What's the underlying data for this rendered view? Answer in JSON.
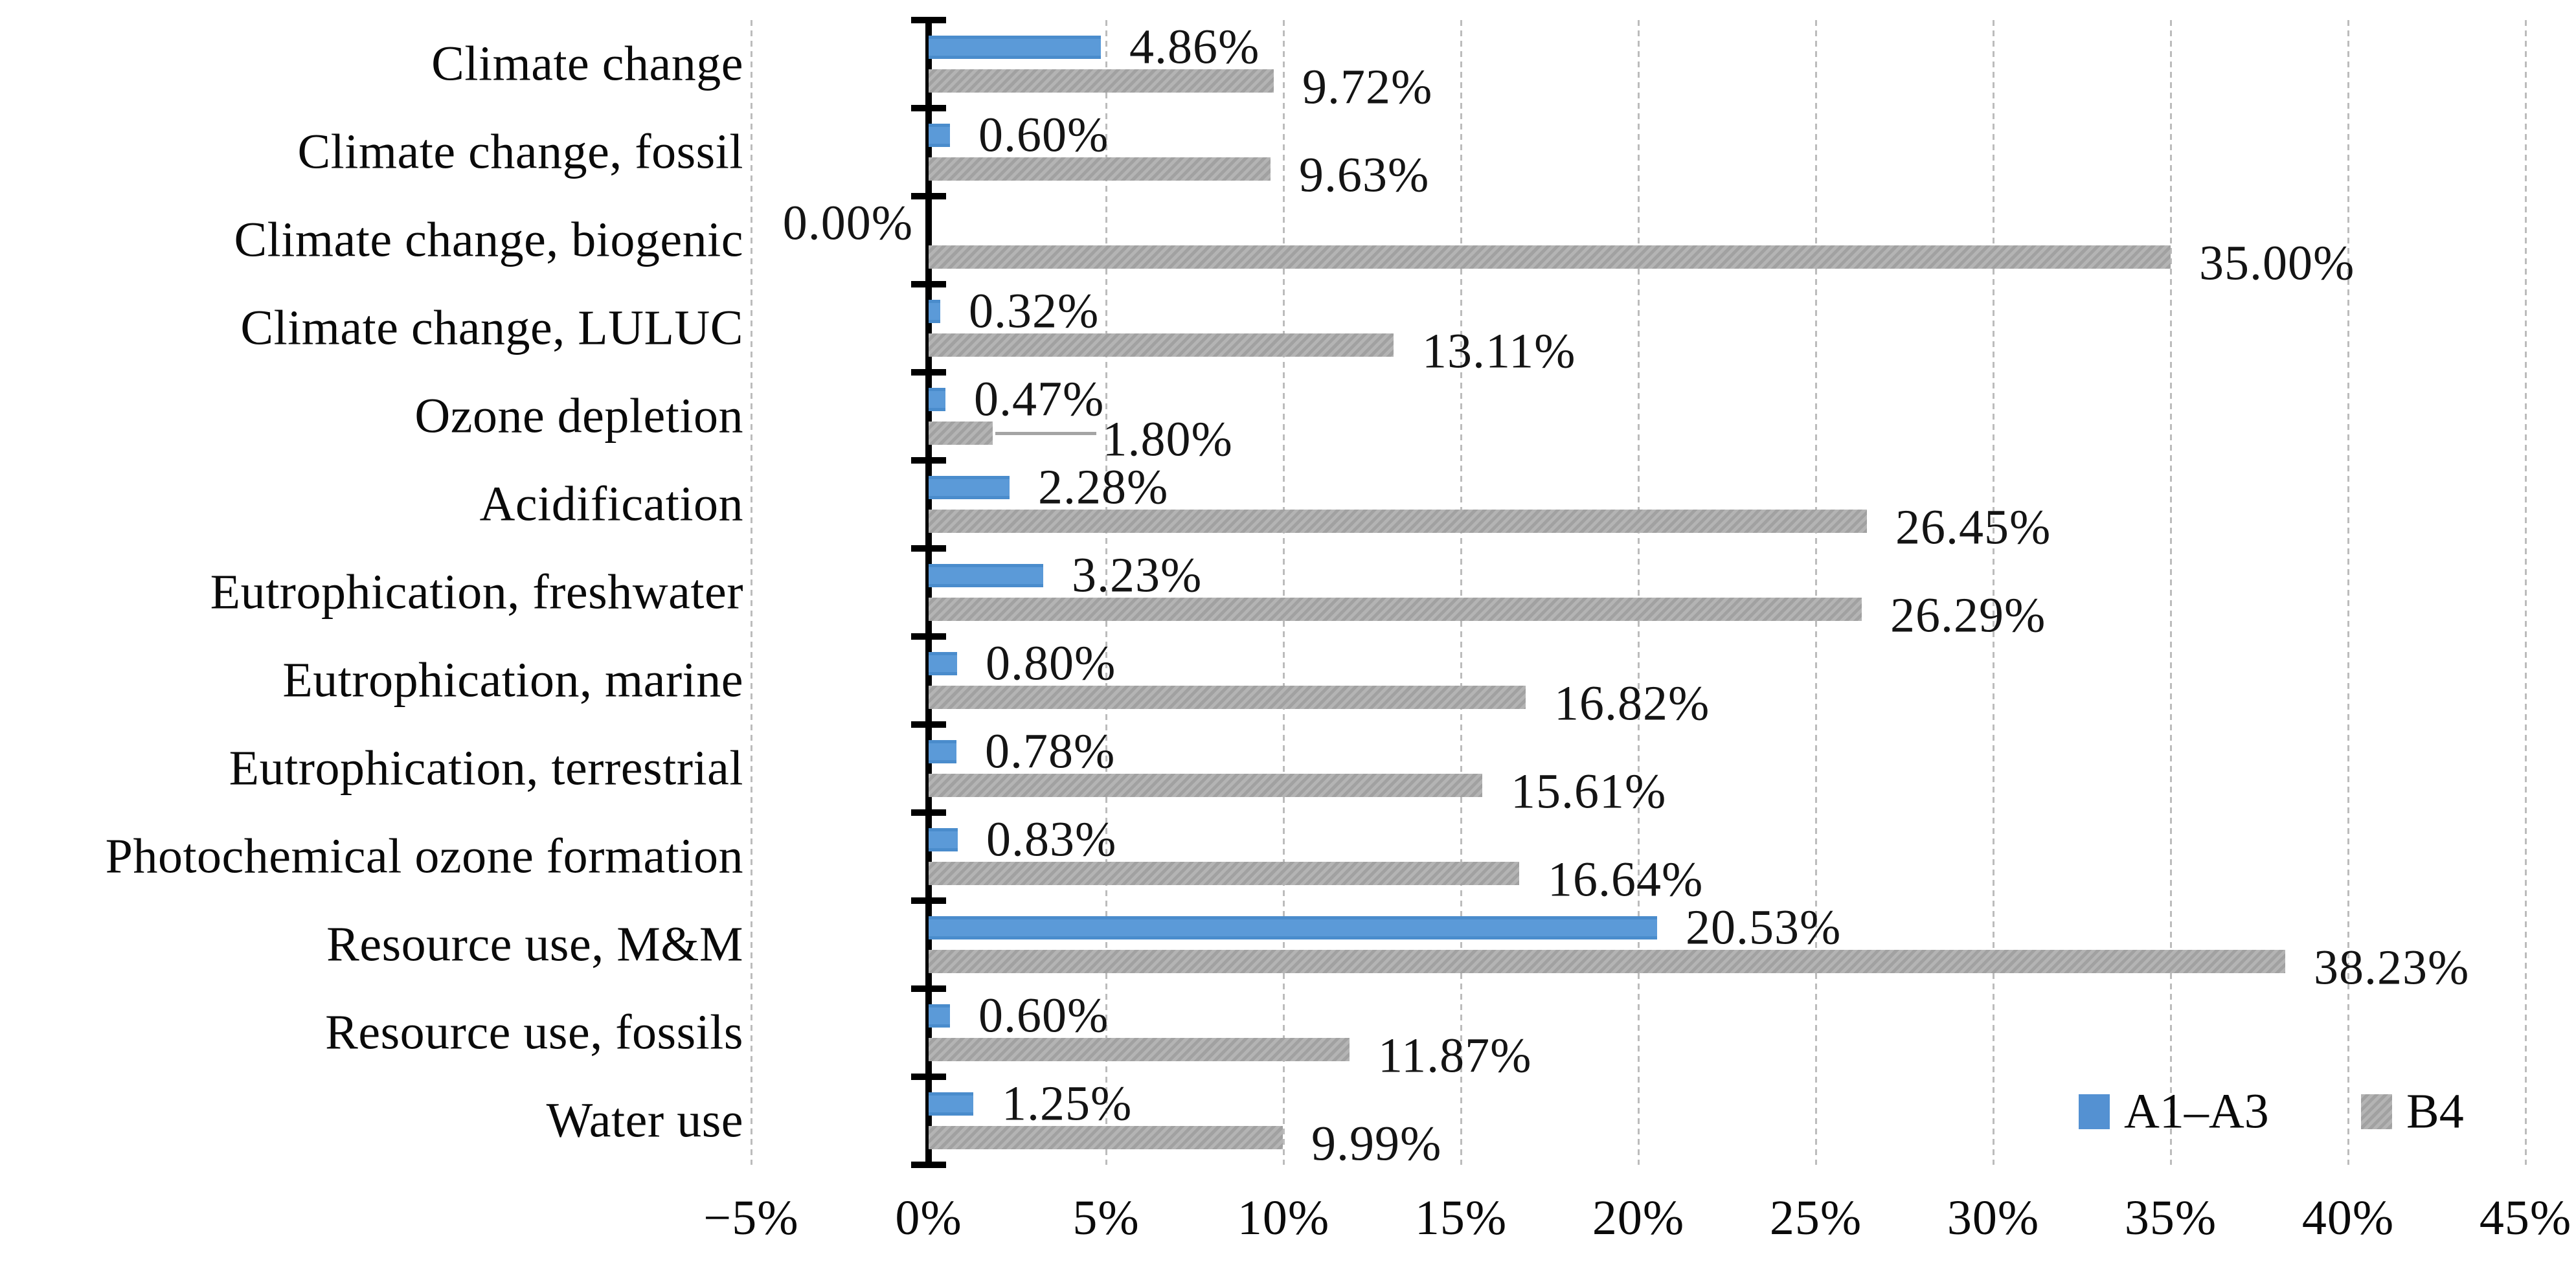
{
  "chart_data": {
    "type": "bar",
    "orientation": "horizontal",
    "title": "",
    "xlabel": "",
    "ylabel": "",
    "grid": "vertical-dashed",
    "categories": [
      "Climate change",
      "Climate change, fossil",
      "Climate change, biogenic",
      "Climate change, LULUC",
      "Ozone depletion",
      "Acidification",
      "Eutrophication, freshwater",
      "Eutrophication, marine",
      "Eutrophication, terrestrial",
      "Photochemical ozone formation",
      "Resource use, M&M",
      "Resource use, fossils",
      "Water use"
    ],
    "series": [
      {
        "name": "A1–A3",
        "color": "#5491d2",
        "values": [
          4.86,
          0.6,
          0.0,
          0.32,
          0.47,
          2.28,
          3.23,
          0.8,
          0.78,
          0.83,
          20.53,
          0.6,
          1.25
        ],
        "labels": [
          "4.86%",
          "0.60%",
          "0.00%",
          "0.32%",
          "0.47%",
          "2.28%",
          "3.23%",
          "0.80%",
          "0.78%",
          "0.83%",
          "20.53%",
          "0.60%",
          "1.25%"
        ]
      },
      {
        "name": "B4",
        "color": "#ababab",
        "values": [
          9.72,
          9.63,
          35.0,
          13.11,
          1.8,
          26.45,
          26.29,
          16.82,
          15.61,
          16.64,
          38.23,
          11.87,
          9.99
        ],
        "labels": [
          "9.72%",
          "9.63%",
          "35.00%",
          "13.11%",
          "1.80%",
          "26.45%",
          "26.29%",
          "16.82%",
          "15.61%",
          "16.64%",
          "38.23%",
          "11.87%",
          "9.99%"
        ]
      }
    ],
    "x_axis": {
      "min": -5,
      "max": 45,
      "step": 5,
      "tick_labels": [
        "−5%",
        "0%",
        "5%",
        "10%",
        "15%",
        "20%",
        "25%",
        "30%",
        "35%",
        "40%",
        "45%"
      ]
    },
    "legend": {
      "position": "bottom-right",
      "entries": [
        {
          "label": "A1–A3",
          "color": "#5491d2"
        },
        {
          "label": "B4",
          "color": "#ababab"
        }
      ]
    },
    "label_overrides": [
      {
        "series": 0,
        "category_index": 2,
        "placement": "left-of-axis"
      },
      {
        "series": 1,
        "category_index": 4,
        "placement": "offset-right",
        "label_x_pct": 4.9,
        "leader_line": true
      }
    ],
    "colors": {
      "axis": "#000000",
      "gridline": "#bcbcbc",
      "label_text": "#141414",
      "leader_line": "#a4a4a4"
    }
  }
}
